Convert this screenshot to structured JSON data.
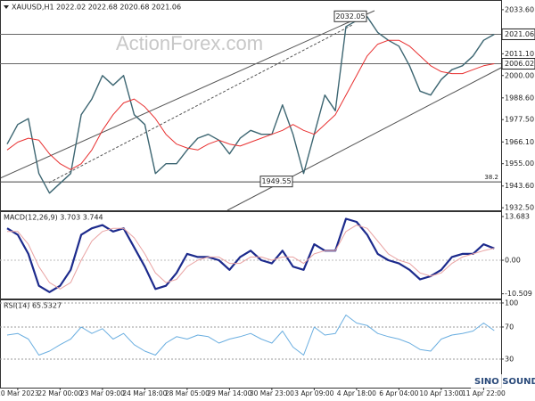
{
  "chart_data": [
    {
      "type": "line",
      "title": "XAUUSD,H1 2022.02 2022.68 2020.68 2021.06",
      "watermark": "ActionForex.com",
      "logo": "SINO SOUND",
      "categories": [
        null,
        "20 Mar 2023",
        null,
        null,
        null,
        "22 Mar 00:00",
        null,
        null,
        null,
        "23 Mar 09:00",
        null,
        null,
        null,
        "24 Mar 18:00",
        null,
        null,
        null,
        "28 Mar 05:00",
        null,
        null,
        null,
        "29 Mar 14:00",
        null,
        null,
        null,
        "30 Mar 23:00",
        null,
        null,
        null,
        "3 Apr 09:00",
        null,
        null,
        null,
        "4 Apr 18:00",
        null,
        null,
        null,
        "6 Apr 04:00",
        null,
        null,
        null,
        "10 Apr 13:00",
        null,
        null,
        null,
        "11 Apr 22:00",
        null
      ],
      "series": [
        {
          "name": "XAUUSD",
          "color": "#3d6672",
          "values": [
            1965,
            1975,
            1978,
            1950,
            1940,
            1945,
            1950,
            1980,
            1988,
            2000,
            1995,
            2000,
            1980,
            1975,
            1950,
            1955,
            1955,
            1962,
            1968,
            1970,
            1967,
            1960,
            1968,
            1972,
            1970,
            1970,
            1985,
            1970,
            1950,
            1970,
            1990,
            1982,
            2025,
            2028,
            2030,
            2022,
            2018,
            2015,
            2005,
            1992,
            1990,
            1998,
            2003,
            2005,
            2010,
            2018,
            2021.06
          ]
        },
        {
          "name": "MA",
          "color": "#e83030",
          "values": [
            1962,
            1966,
            1968,
            1967,
            1960,
            1955,
            1952,
            1955,
            1962,
            1972,
            1980,
            1986,
            1988,
            1984,
            1978,
            1970,
            1965,
            1963,
            1962,
            1965,
            1967,
            1965,
            1964,
            1966,
            1968,
            1970,
            1972,
            1975,
            1972,
            1970,
            1975,
            1980,
            1990,
            2000,
            2010,
            2016,
            2018,
            2018,
            2015,
            2010,
            2005,
            2002,
            2001,
            2001,
            2003,
            2005,
            2006.02
          ]
        }
      ],
      "annotations": [
        {
          "text": "2032.05",
          "value": 2032.05
        },
        {
          "text": "1949.55",
          "value": 1949.55
        }
      ],
      "fib": {
        "ratio": 38.2,
        "price": 1945.7
      },
      "ylim": [
        1931.2,
        2038.1
      ],
      "yticks": [
        {
          "value": 2033.6,
          "label": "2033.60"
        },
        {
          "value": 2011.1,
          "label": "2011.10"
        },
        {
          "value": 2000,
          "label": "2000.00"
        },
        {
          "value": 1988.6,
          "label": "1988.60"
        },
        {
          "value": 1977.5,
          "label": "1977.50"
        },
        {
          "value": 1966.1,
          "label": "1966.10"
        },
        {
          "value": 1955,
          "label": "1955.00"
        },
        {
          "value": 1943.6,
          "label": "1943.60"
        },
        {
          "value": 1932.5,
          "label": "1932.50"
        }
      ]
    },
    {
      "type": "line",
      "title": "MACD(12,26,9) 3.703 3.744",
      "series": [
        {
          "name": "MACD",
          "color": "#1c2a8c",
          "values": [
            10,
            8,
            2,
            -8,
            -10,
            -8,
            -3,
            8,
            10,
            11,
            9,
            10,
            4,
            -2,
            -9,
            -8,
            -4,
            2,
            1,
            1,
            0,
            -3,
            1,
            3,
            0,
            -1,
            3,
            -2,
            -3,
            5,
            3,
            3,
            13,
            12,
            8,
            2,
            0,
            -1,
            -3,
            -6,
            -5,
            -3,
            1,
            2,
            2,
            5,
            3.703
          ]
        },
        {
          "name": "Signal",
          "color": "#e9a3a3",
          "values": [
            9,
            9,
            5,
            -2,
            -7,
            -9,
            -7,
            0,
            6,
            9,
            10,
            10,
            7,
            2,
            -4,
            -7,
            -6,
            -2,
            0,
            1,
            1,
            -1,
            -1,
            1,
            1,
            0,
            1,
            1,
            -1,
            2,
            3,
            3,
            9,
            11,
            10,
            6,
            2,
            0,
            -1,
            -4,
            -5,
            -4,
            -1,
            1,
            2,
            3,
            3.744
          ]
        }
      ],
      "ylim": [
        -12.0,
        15.08
      ],
      "yticks": [
        13.683,
        {
          "value": 0,
          "label": "0.00"
        },
        -10.509
      ]
    },
    {
      "type": "line",
      "title": "RSI(14) 65.5327",
      "grid": true,
      "series": [
        {
          "name": "RSI",
          "color": "#6aaee0",
          "values": [
            60,
            62,
            55,
            35,
            40,
            48,
            55,
            70,
            62,
            68,
            55,
            62,
            48,
            40,
            35,
            50,
            58,
            55,
            60,
            58,
            50,
            55,
            58,
            62,
            55,
            50,
            65,
            45,
            35,
            70,
            60,
            62,
            85,
            75,
            72,
            62,
            58,
            55,
            50,
            42,
            40,
            55,
            60,
            62,
            65,
            75,
            65.5
          ]
        }
      ],
      "ylim": [
        -5.6,
        103.3
      ],
      "yticks": [
        100,
        70,
        30
      ]
    }
  ]
}
